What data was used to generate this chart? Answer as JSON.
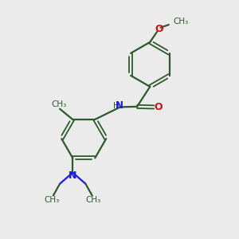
{
  "background_color": "#ebebeb",
  "bond_color": "#2d5a2d",
  "nitrogen_color": "#1a1aee",
  "oxygen_color": "#cc1111",
  "figsize": [
    3.0,
    3.0
  ],
  "dpi": 100,
  "xlim": [
    0,
    10
  ],
  "ylim": [
    0,
    10
  ]
}
